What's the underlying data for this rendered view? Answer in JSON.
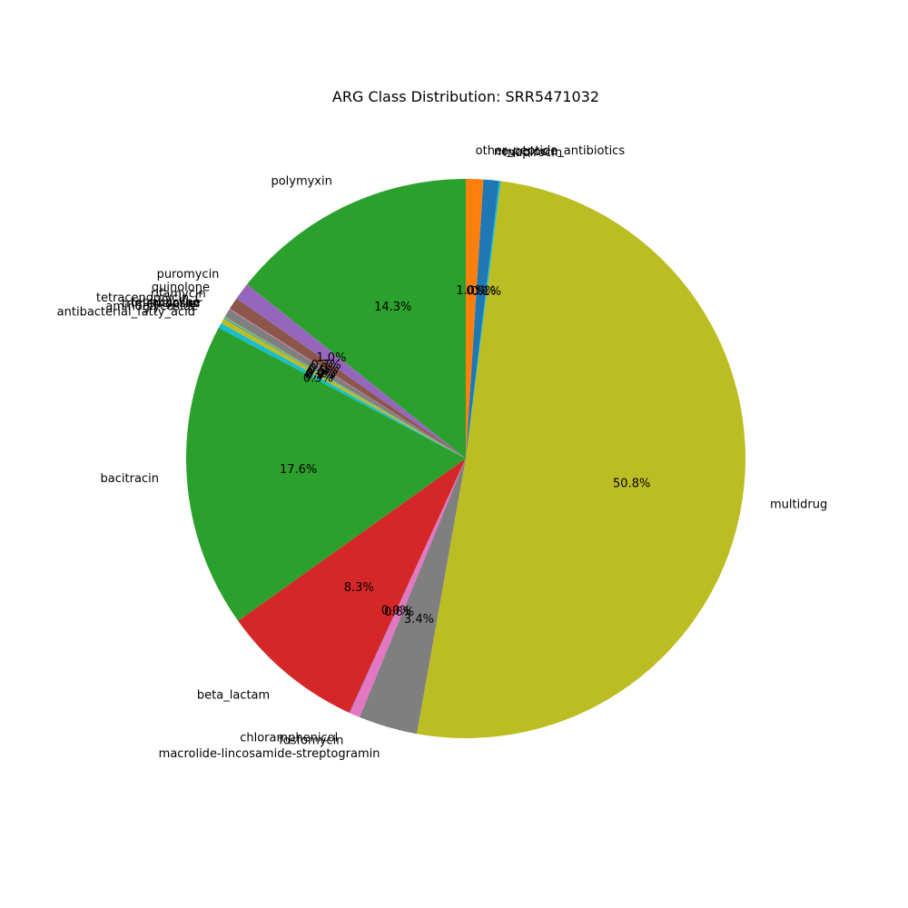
{
  "chart_data": {
    "type": "pie",
    "title": "ARG Class Distribution: SRR5471032",
    "start_angle_deg": 90,
    "direction": "counterclockwise",
    "slices": [
      {
        "label": "polymyxin",
        "value": 14.3,
        "pct_text": "14.3%",
        "color": "#2ca02c"
      },
      {
        "label": "puromycin",
        "value": 1.0,
        "pct_text": "1.0%",
        "color": "#9467bd"
      },
      {
        "label": "quinolone",
        "value": 0.7,
        "pct_text": "0.7%",
        "color": "#8c564b"
      },
      {
        "label": "rifamycin",
        "value": 0.04,
        "pct_text": "0.0%",
        "color": "#e377c2"
      },
      {
        "label": "tetracenomycin_C",
        "value": 0.5,
        "pct_text": "0.5%",
        "color": "#7f7f7f"
      },
      {
        "label": "tetracycline",
        "value": 0.04,
        "pct_text": "0.0%",
        "color": "#bcbd22"
      },
      {
        "label": "triclosan",
        "value": 0.04,
        "pct_text": "0.0%",
        "color": "#17becf"
      },
      {
        "label": "trimethoprim",
        "value": 0.04,
        "pct_text": "0.0%",
        "color": "#1f77b4"
      },
      {
        "label": "aminoglycoside",
        "value": 0.3,
        "pct_text": "0.3%",
        "color": "#bcbd22"
      },
      {
        "label": "antibacterial_fatty_acid",
        "value": 0.3,
        "pct_text": "0.3%",
        "color": "#17becf"
      },
      {
        "label": "bacitracin",
        "value": 17.6,
        "pct_text": "17.6%",
        "color": "#2ca02c"
      },
      {
        "label": "beta_lactam",
        "value": 8.3,
        "pct_text": "8.3%",
        "color": "#d62728"
      },
      {
        "label": "chloramphenicol",
        "value": 0.04,
        "pct_text": "0.0%",
        "color": "#9467bd"
      },
      {
        "label": "fosfomycin",
        "value": 0.6,
        "pct_text": "0.6%",
        "color": "#e377c2"
      },
      {
        "label": "macrolide-lincosamide-streptogramin",
        "value": 3.4,
        "pct_text": "3.4%",
        "color": "#7f7f7f"
      },
      {
        "label": "multidrug",
        "value": 50.8,
        "pct_text": "50.8%",
        "color": "#bcbd22"
      },
      {
        "label": "mupirocin",
        "value": 0.1,
        "pct_text": "0.1%",
        "color": "#17becf"
      },
      {
        "label": "novobiocin",
        "value": 0.9,
        "pct_text": "0.9%",
        "color": "#1f77b4"
      },
      {
        "label": "other_peptide_antibiotics",
        "value": 1.0,
        "pct_text": "1.0%",
        "color": "#ff7f0e"
      }
    ]
  }
}
